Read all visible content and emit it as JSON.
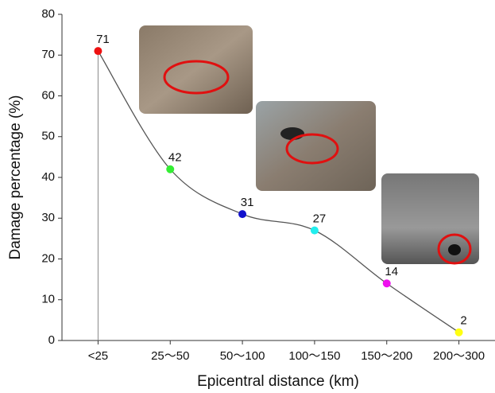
{
  "chart_data": {
    "type": "line",
    "x_label": "Epicentral distance (km)",
    "y_label": "Damage percentage (%)",
    "categories": [
      "<25",
      "25～50",
      "50～100",
      "100～150",
      "150～200",
      "200～300"
    ],
    "values": [
      71,
      42,
      31,
      27,
      14,
      2
    ],
    "point_colors": [
      "#ee1111",
      "#33ee33",
      "#1111cc",
      "#22eeee",
      "#ee11ee",
      "#ffff11"
    ],
    "line_color": "#555555",
    "ylim": [
      0,
      80
    ],
    "yticks": [
      0,
      10,
      20,
      30,
      40,
      50,
      60,
      70,
      80
    ]
  }
}
